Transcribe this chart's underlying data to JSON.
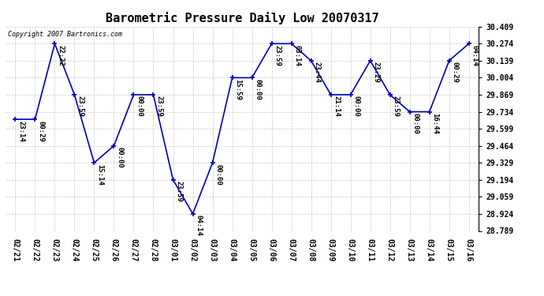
{
  "title": "Barometric Pressure Daily Low 20070317",
  "copyright": "Copyright 2007 Bartronics.com",
  "dates": [
    "02/21",
    "02/22",
    "02/23",
    "02/24",
    "02/25",
    "02/26",
    "02/27",
    "02/28",
    "03/01",
    "03/02",
    "03/03",
    "03/04",
    "03/05",
    "03/06",
    "03/07",
    "03/08",
    "03/09",
    "03/10",
    "03/11",
    "03/12",
    "03/13",
    "03/14",
    "03/15",
    "03/16"
  ],
  "values": [
    29.674,
    29.674,
    30.274,
    29.869,
    29.329,
    29.464,
    29.869,
    29.869,
    29.194,
    28.924,
    29.329,
    30.004,
    30.004,
    30.274,
    30.274,
    30.139,
    29.869,
    29.869,
    30.139,
    29.869,
    29.734,
    29.734,
    30.139,
    30.274
  ],
  "times": [
    "23:14",
    "00:29",
    "22:22",
    "23:59",
    "15:14",
    "00:00",
    "00:00",
    "23:59",
    "23:59",
    "04:14",
    "00:00",
    "15:59",
    "00:00",
    "23:59",
    "03:14",
    "23:44",
    "21:14",
    "00:00",
    "23:29",
    "23:59",
    "00:00",
    "16:44",
    "00:29",
    "04:14"
  ],
  "ylim": [
    28.789,
    30.409
  ],
  "yticks": [
    28.789,
    28.924,
    29.059,
    29.194,
    29.329,
    29.464,
    29.599,
    29.734,
    29.869,
    30.004,
    30.139,
    30.274,
    30.409
  ],
  "line_color": "#0000bb",
  "marker_color": "#0000bb",
  "bg_color": "#ffffff",
  "grid_color": "#bbbbbb",
  "title_fontsize": 11,
  "label_fontsize": 6.5,
  "tick_fontsize": 7,
  "copyright_fontsize": 6
}
